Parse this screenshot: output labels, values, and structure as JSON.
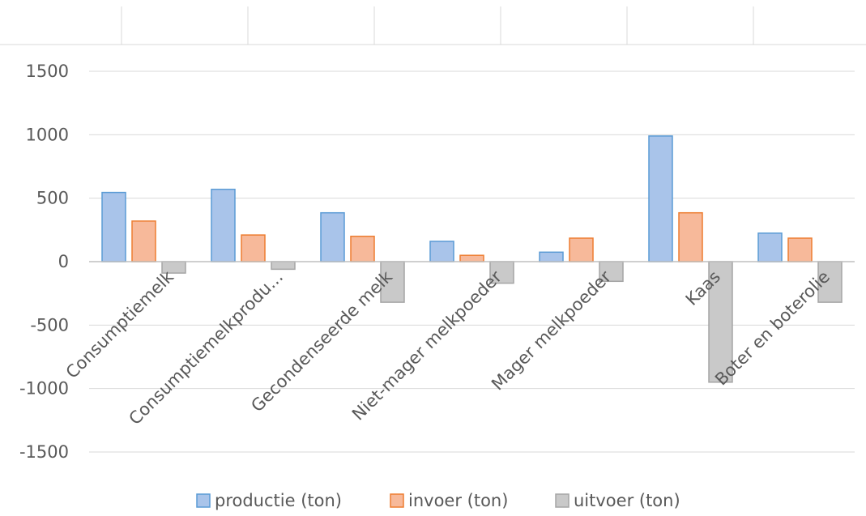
{
  "chart_data": {
    "type": "bar",
    "categories": [
      "Consumptiemelk",
      "Consumptiemelkprodu...",
      "Gecondenseerde melk",
      "Niet-mager melkpoeder",
      "Mager melkpoeder",
      "Kaas",
      "Boter en boterolie"
    ],
    "series": [
      {
        "name": "productie (ton)",
        "values": [
          545,
          570,
          385,
          160,
          75,
          990,
          225
        ],
        "fill": "#a9c4ea",
        "stroke": "#5b9bd5"
      },
      {
        "name": "invoer (ton)",
        "values": [
          320,
          210,
          200,
          50,
          185,
          385,
          185
        ],
        "fill": "#f7b99a",
        "stroke": "#ed7d31"
      },
      {
        "name": "uitvoer (ton)",
        "values": [
          -90,
          -60,
          -320,
          -170,
          -155,
          -950,
          -320
        ],
        "fill": "#c9c9c9",
        "stroke": "#a5a5a5"
      }
    ],
    "yticks": [
      "1500",
      "1000",
      "500",
      "0",
      "-500",
      "-1000",
      "-1500"
    ],
    "ylim": [
      -1500,
      1500
    ],
    "grid": true,
    "legend_position": "bottom",
    "title": "",
    "xlabel": "",
    "ylabel": ""
  }
}
